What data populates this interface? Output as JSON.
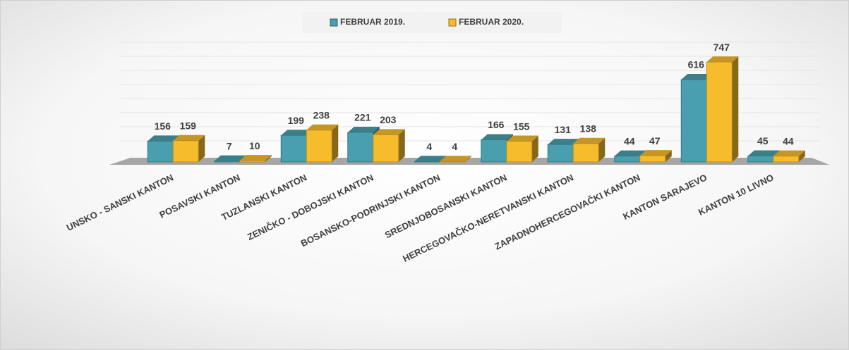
{
  "chart_data": {
    "type": "bar3d",
    "categories": [
      "UNSKO - SANSKI KANTON",
      "POSAVSKI KANTON",
      "TUZLANSKI KANTON",
      "ZENIČKO - DOBOJSKI KANTON",
      "BOSANSKO-PODRINJSKI KANTON",
      "SREDNJOBOSANSKI KANTON",
      "HERCEGOVAČKO-NERETVANSKI KANTON",
      "ZAPADNOHERCEGOVAČKI KANTON",
      "KANTON SARAJEVO",
      "KANTON 10 LIVNO"
    ],
    "series": [
      {
        "name": "FEBRUAR 2019.",
        "color": "#4a9fae",
        "values": [
          156,
          7,
          199,
          221,
          4,
          166,
          131,
          44,
          616,
          45
        ]
      },
      {
        "name": "FEBRUAR 2020.",
        "color": "#f7bc2c",
        "values": [
          159,
          10,
          238,
          203,
          4,
          155,
          138,
          47,
          747,
          44
        ]
      }
    ],
    "ylim": [
      0,
      800
    ]
  }
}
